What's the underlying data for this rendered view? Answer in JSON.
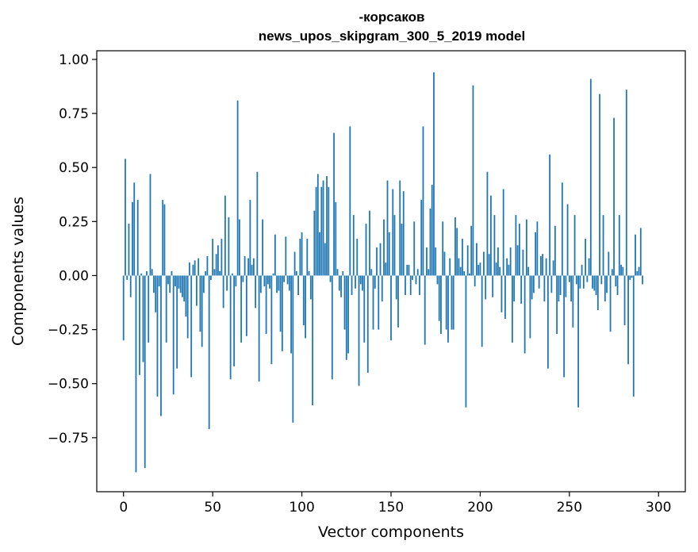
{
  "chart_data": {
    "type": "bar",
    "title_lines": [
      "-корсаков",
      "news_upos_skipgram_300_5_2019 model"
    ],
    "xlabel": "Vector components",
    "ylabel": "Components values",
    "xlim": [
      -15,
      315
    ],
    "ylim": [
      -1.0,
      1.04
    ],
    "xticks": [
      0,
      50,
      100,
      150,
      200,
      250,
      300
    ],
    "xtick_labels": [
      "0",
      "50",
      "100",
      "150",
      "200",
      "250",
      "300"
    ],
    "yticks": [
      -0.75,
      -0.5,
      -0.25,
      0.0,
      0.25,
      0.5,
      0.75,
      1.0
    ],
    "ytick_labels": [
      "−0.75",
      "−0.50",
      "−0.25",
      "0.00",
      "0.25",
      "0.50",
      "0.75",
      "1.00"
    ],
    "grid": false,
    "color": "#1f77b4",
    "values": [
      -0.3,
      0.54,
      -0.02,
      0.24,
      -0.1,
      0.34,
      0.43,
      -0.91,
      0.35,
      -0.46,
      0.01,
      -0.4,
      -0.89,
      0.02,
      -0.31,
      0.47,
      0.03,
      -0.08,
      -0.17,
      -0.56,
      -0.05,
      -0.65,
      0.35,
      0.33,
      -0.31,
      -0.04,
      -0.08,
      0.02,
      -0.55,
      -0.05,
      -0.43,
      -0.06,
      -0.08,
      -0.1,
      -0.12,
      -0.19,
      -0.29,
      0.06,
      -0.47,
      0.05,
      0.07,
      -0.14,
      0.08,
      -0.26,
      -0.33,
      -0.08,
      0.02,
      0.09,
      -0.71,
      -0.02,
      0.17,
      0.03,
      0.1,
      0.14,
      0.02,
      0.17,
      -0.15,
      0.37,
      -0.07,
      0.27,
      -0.48,
      0.01,
      -0.42,
      -0.05,
      0.81,
      0.26,
      -0.31,
      -0.03,
      0.09,
      -0.28,
      0.08,
      0.35,
      0.05,
      0.08,
      -0.15,
      0.48,
      -0.49,
      -0.08,
      0.26,
      -0.05,
      -0.27,
      -0.04,
      -0.06,
      -0.41,
      0.01,
      0.19,
      -0.08,
      -0.07,
      -0.26,
      -0.35,
      -0.03,
      0.18,
      -0.04,
      -0.07,
      -0.36,
      -0.68,
      0.11,
      0.02,
      -0.09,
      0.17,
      0.2,
      -0.23,
      -0.29,
      0.17,
      0.02,
      -0.11,
      -0.6,
      0.3,
      0.41,
      0.47,
      0.2,
      0.41,
      0.44,
      0.15,
      0.46,
      0.41,
      -0.03,
      -0.48,
      0.66,
      0.34,
      0.03,
      -0.07,
      -0.1,
      0.02,
      -0.25,
      -0.39,
      -0.36,
      0.69,
      -0.09,
      0.28,
      -0.06,
      0.17,
      -0.51,
      -0.04,
      -0.07,
      -0.31,
      0.24,
      -0.45,
      0.3,
      0.03,
      -0.25,
      -0.06,
      0.13,
      -0.25,
      0.15,
      -0.12,
      0.26,
      0.06,
      0.44,
      0.2,
      -0.3,
      0.4,
      0.28,
      -0.11,
      -0.24,
      0.44,
      0.24,
      0.39,
      -0.09,
      0.05,
      0.05,
      -0.09,
      -0.02,
      0.25,
      -0.04,
      0.03,
      -0.09,
      0.35,
      0.69,
      -0.32,
      0.13,
      0.03,
      0.31,
      0.42,
      0.94,
      0.13,
      -0.04,
      -0.21,
      -0.27,
      0.25,
      0.11,
      -0.25,
      -0.31,
      0.08,
      -0.25,
      -0.25,
      0.27,
      0.22,
      0.08,
      0.04,
      0.17,
      0.02,
      -0.61,
      0.14,
      0.01,
      0.23,
      0.88,
      -0.05,
      0.15,
      0.05,
      0.06,
      -0.33,
      0.11,
      -0.11,
      0.48,
      0.1,
      0.37,
      -0.1,
      0.28,
      0.06,
      0.13,
      0.04,
      -0.17,
      0.4,
      -0.2,
      0.08,
      0.05,
      0.13,
      -0.31,
      -0.12,
      0.28,
      0.14,
      0.24,
      -0.13,
      0.12,
      -0.36,
      0.26,
      0.04,
      -0.29,
      -0.11,
      -0.08,
      0.2,
      0.25,
      -0.06,
      0.09,
      0.1,
      -0.12,
      0.08,
      -0.43,
      0.56,
      -0.08,
      0.07,
      0.23,
      -0.27,
      -0.12,
      -0.09,
      0.43,
      -0.47,
      -0.1,
      0.33,
      -0.03,
      -0.12,
      -0.24,
      0.28,
      -0.04,
      -0.61,
      -0.06,
      0.05,
      -0.06,
      0.17,
      -0.03,
      0.08,
      0.91,
      -0.06,
      -0.07,
      -0.09,
      -0.16,
      0.84,
      -0.04,
      0.28,
      -0.12,
      -0.08,
      0.11,
      -0.26,
      0.03,
      0.73,
      -0.05,
      -0.09,
      0.28,
      0.05,
      0.04,
      -0.23,
      0.86,
      -0.41,
      -0.02,
      -0.01,
      -0.56,
      0.19,
      0.02,
      0.04,
      0.22,
      -0.04
    ]
  }
}
